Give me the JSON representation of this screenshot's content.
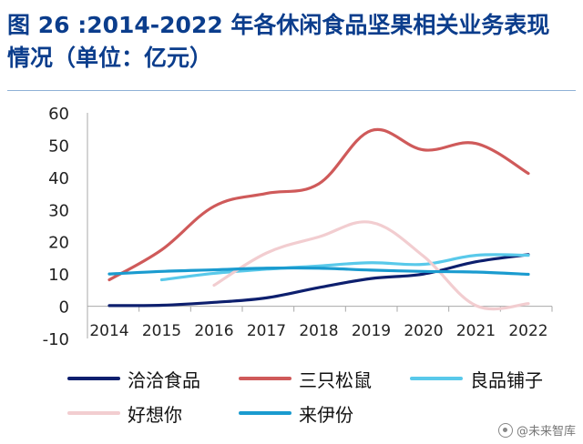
{
  "title": {
    "line1": "图 26 :2014-2022 年各休闲食品坚果相关业务表现",
    "line2": "情况（单位：亿元）"
  },
  "chart_data": {
    "type": "line",
    "title": "图 26 :2014-2022 年各休闲食品坚果相关业务表现情况（单位：亿元）",
    "xlabel": "",
    "ylabel": "亿元",
    "ylim": [
      -10,
      60
    ],
    "yticks": [
      "60",
      "50",
      "40",
      "30",
      "20",
      "10",
      "0",
      "-10"
    ],
    "ytick_values": [
      60,
      50,
      40,
      30,
      20,
      10,
      0,
      -10
    ],
    "categories": [
      "2014",
      "2015",
      "2016",
      "2017",
      "2018",
      "2019",
      "2020",
      "2021",
      "2022"
    ],
    "legend_position": "bottom",
    "series": [
      {
        "name": "洽洽食品",
        "color": "#0d1f6e",
        "values": [
          0.2,
          0.3,
          1.2,
          2.6,
          5.8,
          8.6,
          10.0,
          13.8,
          16.0
        ]
      },
      {
        "name": "三只松鼠",
        "color": "#cf5a5a",
        "values": [
          8.2,
          17.5,
          31.0,
          35.0,
          38.0,
          54.5,
          48.5,
          50.5,
          41.2
        ]
      },
      {
        "name": "良品铺子",
        "color": "#59c9ea",
        "values": [
          null,
          8.2,
          10.2,
          11.5,
          12.5,
          13.5,
          13.0,
          15.8,
          15.8
        ]
      },
      {
        "name": "好想你",
        "color": "#f2cdd0",
        "values": [
          null,
          null,
          6.5,
          16.5,
          21.5,
          26.0,
          15.5,
          0.2,
          0.8
        ]
      },
      {
        "name": "来伊份",
        "color": "#1a9bcf",
        "values": [
          10.0,
          10.8,
          11.3,
          11.8,
          11.8,
          11.2,
          10.8,
          10.6,
          9.9
        ]
      }
    ]
  },
  "watermark": {
    "text": "@未来智库"
  }
}
